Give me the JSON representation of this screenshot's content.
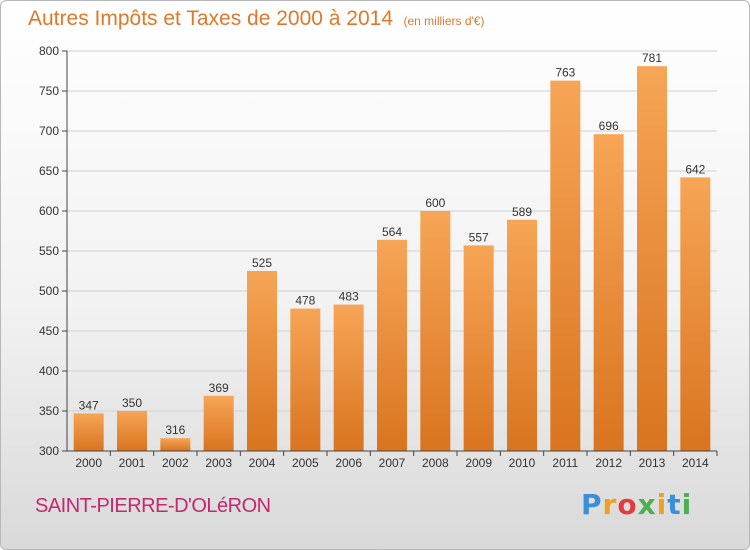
{
  "header": {
    "title": "Autres Impôts et Taxes de 2000 à 2014",
    "unit": "(en milliers d'€)"
  },
  "footer": {
    "commune": "SAINT-PIERRE-D'OLéRON",
    "brand_letters": [
      "P",
      "r",
      "o",
      "x",
      "i",
      "t",
      "i"
    ],
    "brand_colors": [
      "#3a8fd6",
      "#f0a020",
      "#e03c3c",
      "#4caf50",
      "#f0a020",
      "#3a8fd6",
      "#4caf50"
    ]
  },
  "colors": {
    "bar_light": "#f6a556",
    "bar_dark": "#d9741f",
    "grid": "#d0d0d0",
    "axis": "#444444"
  },
  "chart_data": {
    "type": "bar",
    "categories": [
      "2000",
      "2001",
      "2002",
      "2003",
      "2004",
      "2005",
      "2006",
      "2007",
      "2008",
      "2009",
      "2010",
      "2011",
      "2012",
      "2013",
      "2014"
    ],
    "values": [
      347,
      350,
      316,
      369,
      525,
      478,
      483,
      564,
      600,
      557,
      589,
      763,
      696,
      781,
      642
    ],
    "value_labels": [
      "347",
      "350",
      "316",
      "369",
      "525",
      "478",
      "483",
      "564",
      "600",
      "557",
      "589",
      "763",
      "696",
      "781",
      "642"
    ],
    "yticks": [
      "300",
      "350",
      "400",
      "450",
      "500",
      "550",
      "600",
      "650",
      "700",
      "750",
      "800"
    ],
    "ylim": [
      300,
      800
    ],
    "grid": true,
    "xlabel": "",
    "ylabel": ""
  }
}
